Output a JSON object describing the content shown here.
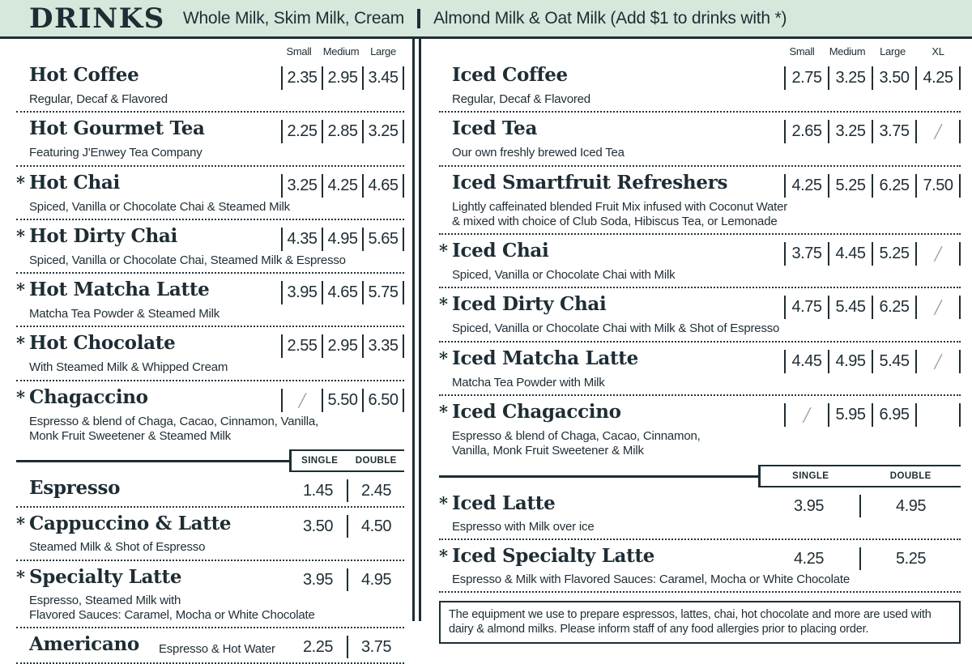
{
  "header": {
    "title": "DRINKS",
    "milk_options": "Whole Milk, Skim Milk, Cream",
    "alt_milk_note": "Almond Milk & Oat Milk (Add $1 to drinks with *)"
  },
  "left": {
    "size_headers": [
      "Small",
      "Medium",
      "Large"
    ],
    "items": [
      {
        "star": "",
        "name": "Hot Coffee",
        "desc": "Regular, Decaf & Flavored",
        "p": [
          "2.35",
          "2.95",
          "3.45"
        ]
      },
      {
        "star": "",
        "name": "Hot Gourmet Tea",
        "desc": "Featuring J'Enwey Tea Company",
        "p": [
          "2.25",
          "2.85",
          "3.25"
        ]
      },
      {
        "star": "*",
        "name": "Hot Chai",
        "desc": "Spiced, Vanilla or Chocolate Chai & Steamed Milk",
        "p": [
          "3.25",
          "4.25",
          "4.65"
        ]
      },
      {
        "star": "*",
        "name": "Hot Dirty Chai",
        "desc": "Spiced, Vanilla or Chocolate Chai, Steamed Milk & Espresso",
        "p": [
          "4.35",
          "4.95",
          "5.65"
        ]
      },
      {
        "star": "*",
        "name": "Hot Matcha Latte",
        "desc": "Matcha Tea Powder & Steamed Milk",
        "p": [
          "3.95",
          "4.65",
          "5.75"
        ]
      },
      {
        "star": "*",
        "name": "Hot Chocolate",
        "desc": "With Steamed Milk & Whipped Cream",
        "p": [
          "2.55",
          "2.95",
          "3.35"
        ]
      },
      {
        "star": "*",
        "name": "Chagaccino",
        "desc": "Espresso & blend of Chaga, Cacao, Cinnamon, Vanilla,\nMonk Fruit Sweetener & Steamed Milk",
        "p": [
          "╱",
          "5.50",
          "6.50"
        ]
      }
    ],
    "shot_headers": [
      "SINGLE",
      "DOUBLE"
    ],
    "shot_items": [
      {
        "star": "",
        "name": "Espresso",
        "desc": "",
        "p": [
          "1.45",
          "2.45"
        ]
      },
      {
        "star": "*",
        "name": "Cappuccino & Latte",
        "desc": "Steamed Milk & Shot of Espresso",
        "p": [
          "3.50",
          "4.50"
        ]
      },
      {
        "star": "*",
        "name": "Specialty Latte",
        "desc": "Espresso, Steamed Milk with\nFlavored Sauces: Caramel, Mocha or White Chocolate",
        "p": [
          "3.95",
          "4.95"
        ]
      },
      {
        "star": "",
        "name": "Americano",
        "desc": "Espresso & Hot Water",
        "p": [
          "2.25",
          "3.75"
        ]
      }
    ]
  },
  "right": {
    "size_headers": [
      "Small",
      "Medium",
      "Large",
      "XL"
    ],
    "items": [
      {
        "star": "",
        "name": "Iced Coffee",
        "desc": "Regular, Decaf & Flavored",
        "p": [
          "2.75",
          "3.25",
          "3.50",
          "4.25"
        ]
      },
      {
        "star": "",
        "name": "Iced Tea",
        "desc": "Our own freshly brewed Iced Tea",
        "p": [
          "2.65",
          "3.25",
          "3.75",
          "╱"
        ]
      },
      {
        "star": "",
        "name": "Iced Smartfruit Refreshers",
        "desc": "Lightly caffeinated blended Fruit Mix infused with Coconut Water\n& mixed with choice of Club Soda, Hibiscus Tea, or Lemonade",
        "p": [
          "4.25",
          "5.25",
          "6.25",
          "7.50"
        ]
      },
      {
        "star": "*",
        "name": "Iced Chai",
        "desc": "Spiced, Vanilla or Chocolate Chai with Milk",
        "p": [
          "3.75",
          "4.45",
          "5.25",
          "╱"
        ]
      },
      {
        "star": "*",
        "name": "Iced Dirty Chai",
        "desc": "Spiced, Vanilla or Chocolate Chai with Milk & Shot of Espresso",
        "p": [
          "4.75",
          "5.45",
          "6.25",
          "╱"
        ]
      },
      {
        "star": "*",
        "name": "Iced Matcha Latte",
        "desc": "Matcha Tea Powder with Milk",
        "p": [
          "4.45",
          "4.95",
          "5.45",
          "╱"
        ]
      },
      {
        "star": "*",
        "name": "Iced Chagaccino",
        "desc": "Espresso & blend of Chaga, Cacao, Cinnamon,\nVanilla, Monk Fruit Sweetener & Milk",
        "p": [
          "╱",
          "5.95",
          "6.95",
          ""
        ]
      }
    ],
    "shot_headers": [
      "SINGLE",
      "DOUBLE"
    ],
    "shot_items": [
      {
        "star": "*",
        "name": "Iced Latte",
        "desc": "Espresso with Milk over ice",
        "p": [
          "3.95",
          "4.95"
        ]
      },
      {
        "star": "*",
        "name": "Iced Specialty Latte",
        "desc": "Espresso & Milk with Flavored Sauces: Caramel, Mocha or White Chocolate",
        "p": [
          "4.25",
          "5.25"
        ]
      }
    ],
    "footnote": "The equipment we use to prepare espressos, lattes, chai, hot chocolate and more are used with dairy & almond milks. Please inform staff of any food allergies prior to placing order."
  },
  "colors": {
    "band_bg": "#d6e8dc",
    "ink": "#1e2d34"
  }
}
